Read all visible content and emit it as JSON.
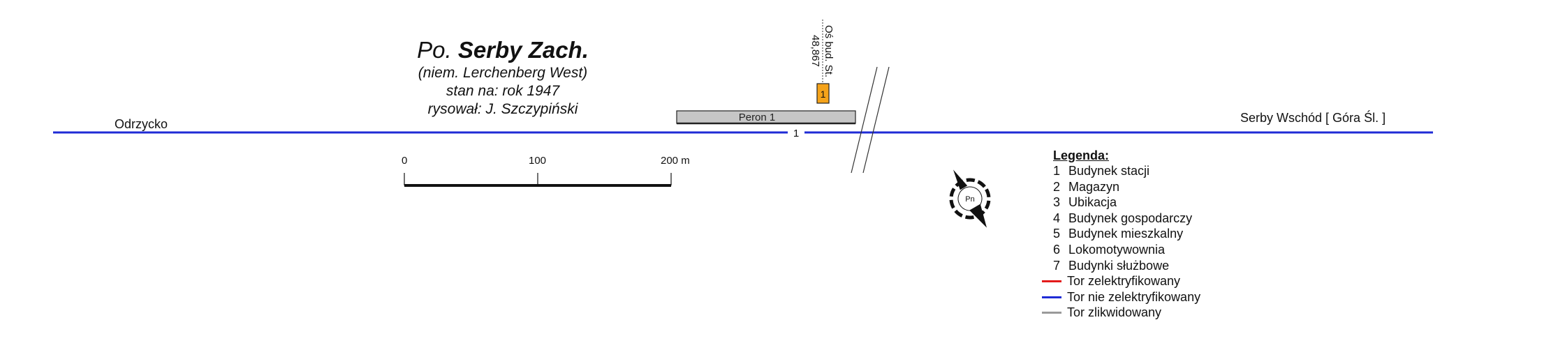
{
  "title": {
    "prefix": "Po.",
    "name": "Serby Zach.",
    "subtitle_german": "(niem. Lerchenberg West)",
    "status": "stan na: rok 1947",
    "author": "rysował: J. Szczypiński"
  },
  "destinations": {
    "left": "Odrzycko",
    "right": "Serby Wschód [ Góra Śl. ]"
  },
  "track": {
    "number": "1",
    "color": "#1f2bd6"
  },
  "platform": {
    "label": "Peron 1"
  },
  "building": {
    "number": "1",
    "color": "#f5a31a"
  },
  "axis": {
    "label": "Oś bud. St.",
    "km": "48,867"
  },
  "scale_bar": {
    "labels": [
      "0",
      "100",
      "200 m"
    ]
  },
  "compass": {
    "label": "Pn"
  },
  "legend": {
    "heading": "Legenda:",
    "items": [
      {
        "num": "1",
        "text": "Budynek stacji"
      },
      {
        "num": "2",
        "text": "Magazyn"
      },
      {
        "num": "3",
        "text": "Ubikacja"
      },
      {
        "num": "4",
        "text": "Budynek gospodarczy"
      },
      {
        "num": "5",
        "text": "Budynek mieszkalny"
      },
      {
        "num": "6",
        "text": "Lokomotywownia"
      },
      {
        "num": "7",
        "text": "Budynki służbowe"
      }
    ],
    "lines": [
      {
        "color": "#e31b1b",
        "text": "Tor zelektryfikowany"
      },
      {
        "color": "#1f2bd6",
        "text": "Tor nie zelektryfikowany"
      },
      {
        "color": "#9a9a9a",
        "text": "Tor zlikwidowany"
      }
    ]
  }
}
